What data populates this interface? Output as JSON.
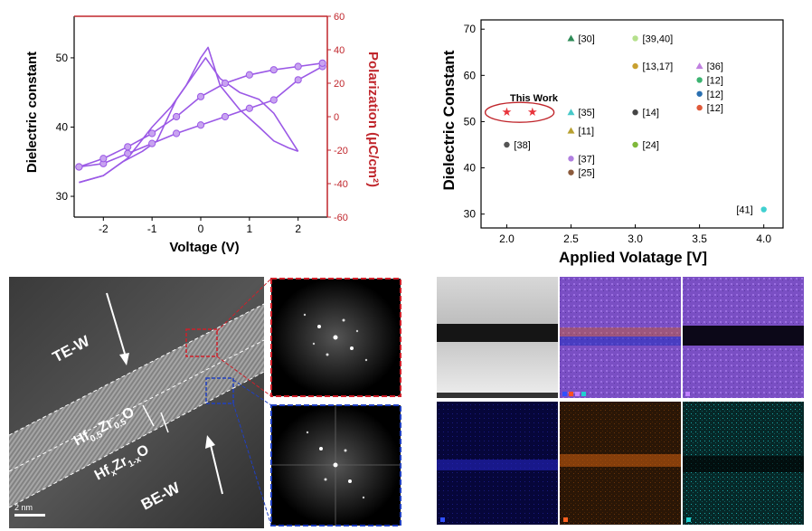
{
  "chart_data": [
    {
      "type": "line",
      "xlabel": "Voltage (V)",
      "ylabel": "Dielectric constant",
      "y2label": "Polarization (μC/cm²)",
      "xlim": [
        -2.6,
        2.6
      ],
      "ylim": [
        27,
        56
      ],
      "y2lim": [
        -60,
        60
      ],
      "xticks": [
        "-2",
        "-1",
        "0",
        "1",
        "2"
      ],
      "yticks": [
        "30",
        "40",
        "50"
      ],
      "y2ticks": [
        "-60",
        "-40",
        "-20",
        "0",
        "20",
        "40",
        "60"
      ],
      "colors": {
        "dielectric": "#9b59e6",
        "polarization_axis": "#c0262c"
      },
      "series": [
        {
          "axis": "left",
          "x": [
            -2.5,
            -2.0,
            -1.5,
            -1.0,
            -0.6,
            -0.3,
            0.0,
            0.15,
            0.4,
            0.8,
            1.2,
            1.5,
            1.8,
            2.0
          ],
          "y": [
            32,
            33,
            35.5,
            40,
            43,
            46,
            50,
            51.5,
            46,
            42.5,
            40,
            38,
            37,
            36.5
          ]
        },
        {
          "axis": "left",
          "x": [
            2.0,
            1.5,
            1.2,
            0.8,
            0.4,
            0.1,
            -0.2,
            -0.5,
            -0.9,
            -1.2,
            -1.6,
            -2.0,
            -2.5
          ],
          "y": [
            36.5,
            42,
            44,
            45,
            47,
            50,
            47,
            44,
            38,
            36.5,
            35,
            33,
            32
          ]
        },
        {
          "axis": "right",
          "x": [
            -2.5,
            -2.0,
            -1.5,
            -1.0,
            -0.5,
            0.0,
            0.5,
            1.0,
            1.5,
            2.0,
            2.5
          ],
          "y": [
            -30,
            -28,
            -22,
            -16,
            -10,
            -5,
            0,
            5,
            10,
            22,
            30
          ]
        },
        {
          "axis": "right",
          "x": [
            2.5,
            2.0,
            1.5,
            1.0,
            0.5,
            0.0,
            -0.5,
            -1.0,
            -1.5,
            -2.0,
            -2.5
          ],
          "y": [
            32,
            30,
            28,
            25,
            20,
            12,
            0,
            -10,
            -18,
            -25,
            -30
          ]
        }
      ]
    },
    {
      "type": "scatter",
      "xlabel": "Applied Volatage [V]",
      "ylabel": "Dielectric Constant",
      "xlim": [
        1.8,
        4.15
      ],
      "ylim": [
        27,
        72
      ],
      "xticks": [
        "2.0",
        "2.5",
        "3.0",
        "3.5",
        "4.0"
      ],
      "yticks": [
        "30",
        "40",
        "50",
        "60",
        "70"
      ],
      "annotation": "This Work",
      "points": [
        {
          "x": 2.0,
          "y": 52,
          "label": "",
          "marker": "star",
          "color": "#e8343c"
        },
        {
          "x": 2.2,
          "y": 52,
          "label": "",
          "marker": "star",
          "color": "#e8343c"
        },
        {
          "x": 2.0,
          "y": 45,
          "label": "[38]",
          "marker": "circle",
          "color": "#555555"
        },
        {
          "x": 2.5,
          "y": 68,
          "label": "[30]",
          "marker": "triangle",
          "color": "#2e8b57"
        },
        {
          "x": 2.5,
          "y": 52,
          "label": "[35]",
          "marker": "triangle",
          "color": "#48c9c9"
        },
        {
          "x": 2.5,
          "y": 48,
          "label": "[11]",
          "marker": "triangle",
          "color": "#b8a030"
        },
        {
          "x": 2.5,
          "y": 42,
          "label": "[37]",
          "marker": "circle",
          "color": "#b07fe0"
        },
        {
          "x": 2.5,
          "y": 39,
          "label": "[25]",
          "marker": "circle",
          "color": "#8b5a3c"
        },
        {
          "x": 3.0,
          "y": 68,
          "label": "[39,40]",
          "marker": "circle",
          "color": "#b5e08c"
        },
        {
          "x": 3.0,
          "y": 62,
          "label": "[13,17]",
          "marker": "circle",
          "color": "#c8a030"
        },
        {
          "x": 3.0,
          "y": 52,
          "label": "[14]",
          "marker": "circle",
          "color": "#444444"
        },
        {
          "x": 3.0,
          "y": 45,
          "label": "[24]",
          "marker": "circle",
          "color": "#7fb83a"
        },
        {
          "x": 3.5,
          "y": 62,
          "label": "[36]",
          "marker": "triangle",
          "color": "#c080e0"
        },
        {
          "x": 3.5,
          "y": 59,
          "label": "[12]",
          "marker": "circle",
          "color": "#3cb371"
        },
        {
          "x": 3.5,
          "y": 56,
          "label": "[12]",
          "marker": "circle",
          "color": "#2a6fb0"
        },
        {
          "x": 3.5,
          "y": 53,
          "label": "[12]",
          "marker": "circle",
          "color": "#e05a3a"
        },
        {
          "x": 4.0,
          "y": 31,
          "label": "[41]",
          "marker": "circle",
          "color": "#40d0d0"
        }
      ]
    }
  ],
  "tem": {
    "labels": {
      "top_electrode": "TE-W",
      "bottom_electrode": "BE-W",
      "layer1_main": "Hf",
      "layer1_sub": "0.5",
      "layer1_main2": "Zr",
      "layer1_sub2": "0.5",
      "layer1_end": "O",
      "layer2_main": "Hf",
      "layer2_sub": "x",
      "layer2_main2": "Zr",
      "layer2_sub2": "1-x",
      "layer2_end": "O",
      "scale_bar": "2 nm"
    },
    "colors": {
      "fft_top_border": "#d0202a",
      "fft_bottom_border": "#2040c0"
    }
  },
  "eds": {
    "colors": {
      "hafnium": "#7a4fc4",
      "oxygen": "#1a1aa0",
      "zirconium": "#c85a10",
      "tungsten": "#18a8a8"
    }
  }
}
